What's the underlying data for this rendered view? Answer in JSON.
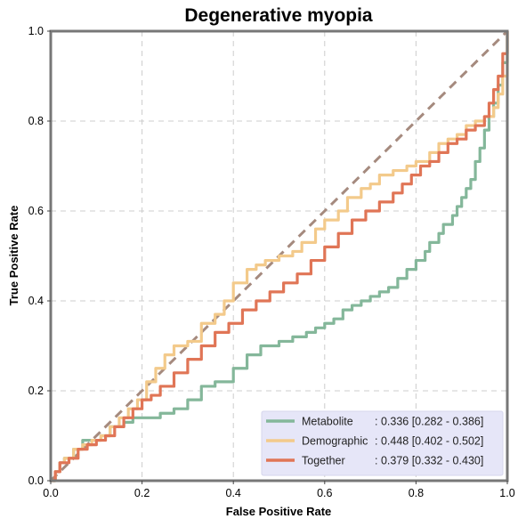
{
  "chart_data": {
    "type": "line",
    "title": "Degenerative myopia",
    "xlabel": "False Positive Rate",
    "ylabel": "True Positive Rate",
    "xlim": [
      0,
      1
    ],
    "ylim": [
      0,
      1
    ],
    "xticks": [
      "0.0",
      "0.2",
      "0.4",
      "0.6",
      "0.8",
      "1.0"
    ],
    "yticks": [
      "0.0",
      "0.2",
      "0.4",
      "0.6",
      "0.8",
      "1.0"
    ],
    "grid": true,
    "legend_position": "bottom-right",
    "reference_line": {
      "x": [
        0,
        1
      ],
      "y": [
        0,
        1
      ],
      "color": "#a58a7e",
      "style": "dashed"
    },
    "series": [
      {
        "name": "Metabolite",
        "legend_name": "Metabolite",
        "legend_value": ": 0.336 [0.282 - 0.386]",
        "color": "#84b79a",
        "x": [
          0,
          0.01,
          0.02,
          0.03,
          0.05,
          0.07,
          0.09,
          0.11,
          0.13,
          0.16,
          0.18,
          0.21,
          0.24,
          0.27,
          0.3,
          0.33,
          0.36,
          0.4,
          0.43,
          0.46,
          0.5,
          0.53,
          0.56,
          0.58,
          0.6,
          0.62,
          0.64,
          0.66,
          0.68,
          0.7,
          0.72,
          0.74,
          0.76,
          0.78,
          0.8,
          0.82,
          0.83,
          0.85,
          0.86,
          0.88,
          0.89,
          0.9,
          0.91,
          0.92,
          0.93,
          0.94,
          0.95,
          0.96,
          0.97,
          0.98,
          0.99,
          1.0
        ],
        "y": [
          0,
          0.02,
          0.04,
          0.05,
          0.07,
          0.09,
          0.09,
          0.1,
          0.12,
          0.13,
          0.14,
          0.14,
          0.15,
          0.16,
          0.18,
          0.21,
          0.22,
          0.25,
          0.28,
          0.3,
          0.31,
          0.32,
          0.33,
          0.34,
          0.35,
          0.36,
          0.38,
          0.39,
          0.4,
          0.41,
          0.42,
          0.43,
          0.45,
          0.47,
          0.49,
          0.51,
          0.53,
          0.55,
          0.57,
          0.59,
          0.61,
          0.63,
          0.65,
          0.67,
          0.71,
          0.74,
          0.78,
          0.81,
          0.84,
          0.88,
          0.93,
          1.0
        ]
      },
      {
        "name": "Demographic",
        "legend_name": "Demographic",
        "legend_value": ": 0.448 [0.402 - 0.502]",
        "color": "#f3ca8b",
        "x": [
          0,
          0.01,
          0.02,
          0.03,
          0.05,
          0.07,
          0.09,
          0.11,
          0.13,
          0.15,
          0.17,
          0.19,
          0.21,
          0.23,
          0.25,
          0.27,
          0.3,
          0.33,
          0.36,
          0.38,
          0.4,
          0.43,
          0.45,
          0.47,
          0.5,
          0.53,
          0.55,
          0.58,
          0.6,
          0.63,
          0.65,
          0.68,
          0.7,
          0.72,
          0.75,
          0.78,
          0.8,
          0.83,
          0.85,
          0.87,
          0.89,
          0.91,
          0.93,
          0.95,
          0.97,
          0.98,
          0.99,
          1.0
        ],
        "y": [
          0,
          0.02,
          0.04,
          0.05,
          0.07,
          0.08,
          0.09,
          0.1,
          0.12,
          0.14,
          0.16,
          0.18,
          0.22,
          0.25,
          0.28,
          0.3,
          0.31,
          0.35,
          0.37,
          0.4,
          0.44,
          0.47,
          0.48,
          0.49,
          0.5,
          0.51,
          0.53,
          0.56,
          0.58,
          0.6,
          0.63,
          0.65,
          0.66,
          0.68,
          0.69,
          0.7,
          0.71,
          0.73,
          0.75,
          0.76,
          0.77,
          0.79,
          0.8,
          0.81,
          0.83,
          0.86,
          0.9,
          1.0
        ]
      },
      {
        "name": "Together",
        "legend_name": "Together",
        "legend_value": ": 0.379 [0.332 - 0.430]",
        "color": "#e07556",
        "x": [
          0,
          0.01,
          0.02,
          0.04,
          0.06,
          0.08,
          0.1,
          0.12,
          0.14,
          0.16,
          0.18,
          0.2,
          0.22,
          0.24,
          0.27,
          0.3,
          0.33,
          0.36,
          0.39,
          0.42,
          0.45,
          0.48,
          0.51,
          0.54,
          0.57,
          0.6,
          0.63,
          0.66,
          0.69,
          0.72,
          0.75,
          0.77,
          0.79,
          0.81,
          0.83,
          0.85,
          0.87,
          0.89,
          0.91,
          0.93,
          0.95,
          0.96,
          0.97,
          0.98,
          0.99,
          1.0
        ],
        "y": [
          0,
          0.02,
          0.04,
          0.05,
          0.07,
          0.08,
          0.09,
          0.1,
          0.12,
          0.14,
          0.16,
          0.18,
          0.19,
          0.21,
          0.24,
          0.27,
          0.3,
          0.33,
          0.35,
          0.38,
          0.4,
          0.42,
          0.44,
          0.46,
          0.49,
          0.52,
          0.55,
          0.58,
          0.6,
          0.62,
          0.64,
          0.66,
          0.68,
          0.7,
          0.71,
          0.73,
          0.75,
          0.76,
          0.78,
          0.79,
          0.81,
          0.84,
          0.87,
          0.9,
          0.95,
          1.0
        ]
      }
    ]
  }
}
